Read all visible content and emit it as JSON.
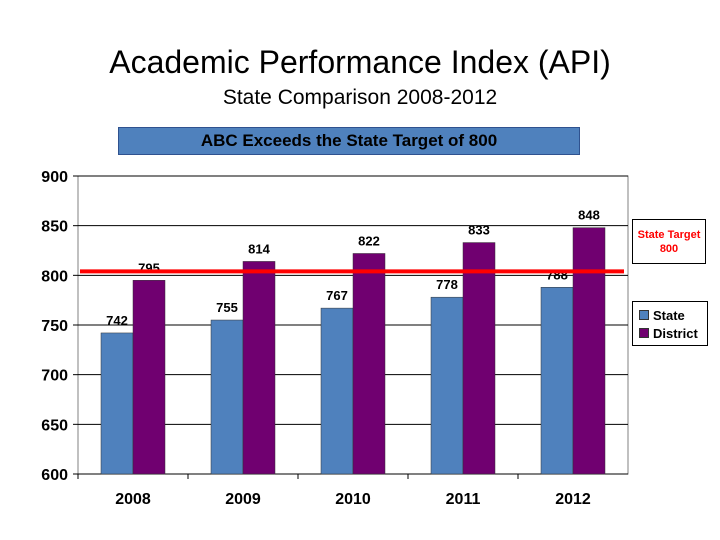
{
  "title": "Academic Performance Index (API)",
  "subtitle": "State Comparison 2008-2012",
  "banner": "ABC Exceeds the State Target of 800",
  "target_box": {
    "line1": "State Target",
    "line2": "800"
  },
  "colors": {
    "state": "#4f81bd",
    "district": "#700070",
    "target_line": "#ff0000",
    "banner": "#4f81bd"
  },
  "chart_data": {
    "type": "bar",
    "categories": [
      "2008",
      "2009",
      "2010",
      "2011",
      "2012"
    ],
    "series": [
      {
        "name": "State",
        "values": [
          742,
          755,
          767,
          778,
          788
        ]
      },
      {
        "name": "District",
        "values": [
          795,
          814,
          822,
          833,
          848
        ]
      }
    ],
    "ylim": [
      600,
      900
    ],
    "yticks": [
      600,
      650,
      700,
      750,
      800,
      850,
      900
    ],
    "target": 800,
    "legend_position": "right",
    "grid": true
  }
}
